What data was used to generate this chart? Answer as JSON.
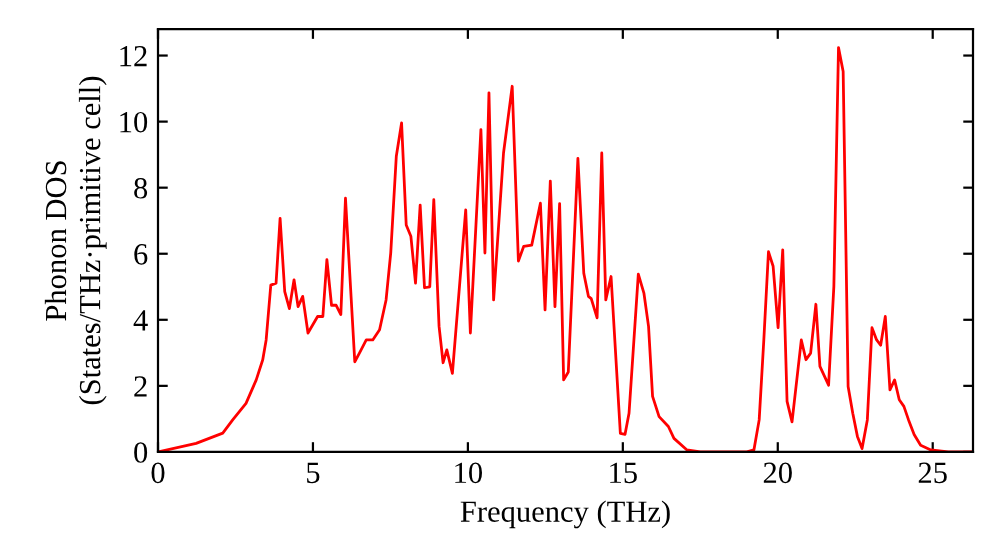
{
  "chart_data": {
    "type": "line",
    "xlabel": "Frequency (THz)",
    "ylabel": "Phonon DOS\n(States/THz·primitive cell)",
    "xlim": [
      0,
      26.3
    ],
    "ylim": [
      0,
      12.8
    ],
    "xticks": [
      0,
      5,
      10,
      15,
      20,
      25
    ],
    "yticks": [
      0,
      2,
      4,
      6,
      8,
      10,
      12
    ],
    "grid": false,
    "marker": "none",
    "line_style": "solid",
    "series": [
      {
        "color": "#ff0000",
        "x": [
          0,
          1.23,
          2.09,
          2.41,
          2.84,
          3.17,
          3.38,
          3.49,
          3.64,
          3.81,
          3.94,
          4.09,
          4.24,
          4.39,
          4.52,
          4.67,
          4.84,
          5.15,
          5.32,
          5.45,
          5.6,
          5.75,
          5.9,
          6.05,
          6.35,
          6.5,
          6.72,
          6.93,
          7.15,
          7.36,
          7.51,
          7.69,
          7.86,
          8.01,
          8.16,
          8.31,
          8.46,
          8.6,
          8.77,
          8.9,
          9.07,
          9.2,
          9.32,
          9.5,
          9.93,
          10.08,
          10.42,
          10.55,
          10.68,
          10.83,
          11.15,
          11.43,
          11.63,
          11.8,
          12.06,
          12.34,
          12.49,
          12.66,
          12.81,
          12.96,
          13.09,
          13.24,
          13.55,
          13.74,
          13.89,
          13.98,
          14.17,
          14.32,
          14.45,
          14.62,
          14.92,
          15.07,
          15.2,
          15.5,
          15.68,
          15.83,
          15.96,
          16.17,
          16.47,
          16.65,
          17.07,
          17.5,
          19.0,
          19.23,
          19.4,
          19.55,
          19.7,
          19.85,
          20.01,
          20.16,
          20.3,
          20.46,
          20.76,
          20.91,
          21.06,
          21.23,
          21.36,
          21.64,
          21.81,
          21.96,
          22.11,
          22.27,
          22.42,
          22.57,
          22.72,
          22.89,
          23.04,
          23.19,
          23.32,
          23.47,
          23.62,
          23.77,
          23.92,
          24.07,
          24.22,
          24.4,
          24.61,
          24.94,
          25.5,
          26.3
        ],
        "values": [
          0,
          0.26,
          0.57,
          0.97,
          1.47,
          2.18,
          2.79,
          3.39,
          5.05,
          5.11,
          7.07,
          4.85,
          4.34,
          5.21,
          4.4,
          4.71,
          3.6,
          4.1,
          4.1,
          5.82,
          4.44,
          4.44,
          4.16,
          7.68,
          2.73,
          2.99,
          3.39,
          3.39,
          3.7,
          4.6,
          6.02,
          8.95,
          9.96,
          6.87,
          6.53,
          5.11,
          7.47,
          4.97,
          5.0,
          7.64,
          3.8,
          2.7,
          3.09,
          2.38,
          7.33,
          3.6,
          9.76,
          6.02,
          10.87,
          4.6,
          9.05,
          11.07,
          5.78,
          6.22,
          6.26,
          7.53,
          4.3,
          8.2,
          4.4,
          7.52,
          2.18,
          2.42,
          8.89,
          5.41,
          4.71,
          4.64,
          4.06,
          9.05,
          4.6,
          5.31,
          0.56,
          0.53,
          1.17,
          5.38,
          4.81,
          3.8,
          1.68,
          1.07,
          0.77,
          0.41,
          0.06,
          0,
          0,
          0.06,
          0.97,
          3.39,
          6.06,
          5.62,
          3.76,
          6.12,
          1.53,
          0.91,
          3.39,
          2.79,
          2.99,
          4.47,
          2.59,
          2.02,
          5.01,
          12.24,
          11.52,
          1.98,
          1.17,
          0.47,
          0.1,
          0.97,
          3.76,
          3.39,
          3.23,
          4.1,
          1.88,
          2.18,
          1.58,
          1.38,
          0.97,
          0.53,
          0.2,
          0.06,
          0,
          0
        ]
      }
    ]
  }
}
